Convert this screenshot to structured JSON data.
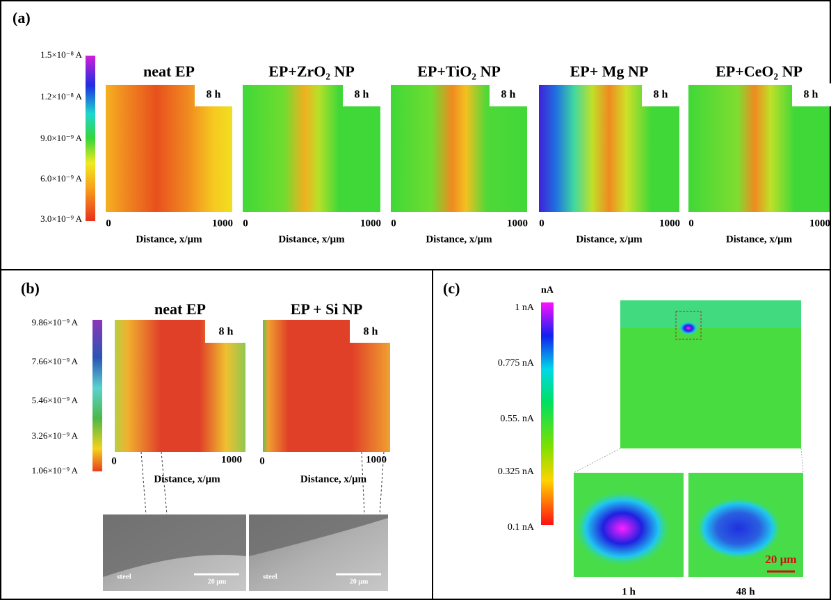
{
  "panel_a": {
    "label": "(a)",
    "colorbar_ticks": [
      "1.5×10⁻⁸ A",
      "1.2×10⁻⁸ A",
      "9.0×10⁻⁹ A",
      "6.0×10⁻⁹ A",
      "3.0×10⁻⁹ A"
    ],
    "maps": [
      {
        "title": "neat EP",
        "time": "8 h",
        "x_start": "0",
        "x_end": "1000",
        "x_label": "Distance, x/µm"
      },
      {
        "title": "EP+ZrO₂ NP",
        "time": "8 h",
        "x_start": "0",
        "x_end": "1000",
        "x_label": "Distance, x/µm"
      },
      {
        "title": "EP+TiO₂ NP",
        "time": "8 h",
        "x_start": "0",
        "x_end": "1000",
        "x_label": "Distance, x/µm"
      },
      {
        "title": "EP+ Mg NP",
        "time": "8 h",
        "x_start": "0",
        "x_end": "1000",
        "x_label": "Distance, x/µm"
      },
      {
        "title": "EP+CeO₂ NP",
        "time": "8 h",
        "x_start": "0",
        "x_end": "1000",
        "x_label": "Distance, x/µm"
      }
    ]
  },
  "panel_b": {
    "label": "(b)",
    "colorbar_ticks": [
      "9.86×10⁻⁹ A",
      "7.66×10⁻⁹ A",
      "5.46×10⁻⁹ A",
      "3.26×10⁻⁹ A",
      "1.06×10⁻⁹ A"
    ],
    "maps": [
      {
        "title": "neat EP",
        "time": "8 h",
        "x_start": "0",
        "x_end": "1000",
        "x_label": "Distance, x/µm"
      },
      {
        "title": "EP + Si NP",
        "time": "8 h",
        "x_start": "0",
        "x_end": "1000",
        "x_label": "Distance, x/µm"
      }
    ],
    "sem_images": [
      {
        "substrate": "steel",
        "scale": "20 µm"
      },
      {
        "substrate": "steel",
        "scale": "20 µm"
      }
    ]
  },
  "panel_c": {
    "label": "(c)",
    "unit": "nA",
    "colorbar_ticks": [
      "1 nA",
      "0.775 nA",
      "0.55. nA",
      "0.325 nA",
      "0.1 nA"
    ],
    "zoom_times": [
      "1 h",
      "48 h"
    ],
    "scale": "20 µm"
  }
}
